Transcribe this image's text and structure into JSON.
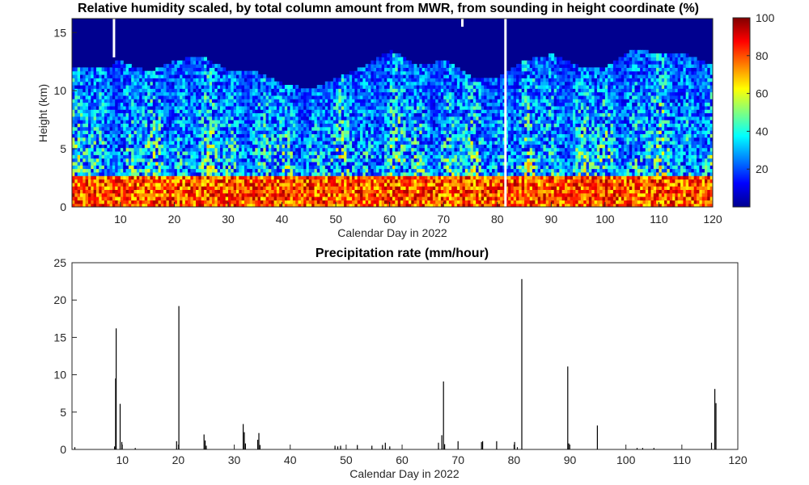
{
  "chart_data": [
    {
      "type": "heatmap",
      "title": "Relative humidity scaled, by total column amount from MWR, from sounding in height coordinate  (%)",
      "xlabel": "Calendar Day in 2022",
      "ylabel": "Height (km)",
      "xlim": [
        1,
        120
      ],
      "ylim": [
        0,
        16.2
      ],
      "xticks": [
        10,
        20,
        30,
        40,
        50,
        60,
        70,
        80,
        90,
        100,
        110,
        120
      ],
      "yticks": [
        0,
        5,
        10,
        15
      ],
      "colorbar": {
        "colormap": "jet",
        "range": [
          0,
          100
        ],
        "ticks": [
          20,
          40,
          60,
          80,
          100
        ]
      },
      "missing_data_days": [
        8.8,
        73.5,
        81.5
      ],
      "moist_layer_top_km_approx": [
        [
          1,
          12
        ],
        [
          8,
          12
        ],
        [
          9,
          12.5
        ],
        [
          15,
          11.5
        ],
        [
          20,
          12.5
        ],
        [
          25,
          12.8
        ],
        [
          30,
          11.5
        ],
        [
          35,
          11.5
        ],
        [
          40,
          10.5
        ],
        [
          45,
          10
        ],
        [
          50,
          11
        ],
        [
          55,
          12
        ],
        [
          60,
          13.3
        ],
        [
          65,
          12
        ],
        [
          70,
          12.5
        ],
        [
          75,
          11
        ],
        [
          80,
          11
        ],
        [
          85,
          12.5
        ],
        [
          90,
          13
        ],
        [
          95,
          12
        ],
        [
          100,
          12
        ],
        [
          105,
          13.5
        ],
        [
          110,
          13
        ],
        [
          115,
          13
        ],
        [
          120,
          12
        ]
      ]
    },
    {
      "type": "bar",
      "title": "Precipitation rate  (mm/hour)",
      "xlabel": "Calendar Day in 2022",
      "ylabel": "",
      "xlim": [
        1,
        120
      ],
      "ylim": [
        0,
        25
      ],
      "xticks": [
        10,
        20,
        30,
        40,
        50,
        60,
        70,
        80,
        90,
        100,
        110,
        120
      ],
      "yticks": [
        0,
        5,
        10,
        15,
        20,
        25
      ],
      "x": [
        1.5,
        8.6,
        8.8,
        8.9,
        9.6,
        9.9,
        12.3,
        19.7,
        20.1,
        24.6,
        24.8,
        25.0,
        31.6,
        31.8,
        32.0,
        34.2,
        34.4,
        34.6,
        48.0,
        48.5,
        49.0,
        52.0,
        54.6,
        56.5,
        57.0,
        57.8,
        66.5,
        67.1,
        67.4,
        67.6,
        70.0,
        74.2,
        74.4,
        76.9,
        80.1,
        80.6,
        81.4,
        89.6,
        89.8,
        94.9,
        102.0,
        103.0,
        105.0,
        115.3,
        115.9,
        116.1
      ],
      "values": [
        0.3,
        0.4,
        9.5,
        16.2,
        6.1,
        1.0,
        0.2,
        1.1,
        19.2,
        2.0,
        1.2,
        0.5,
        3.4,
        2.3,
        0.8,
        1.3,
        2.2,
        0.6,
        0.5,
        0.4,
        0.5,
        0.6,
        0.5,
        0.6,
        0.9,
        0.4,
        0.9,
        1.9,
        9.1,
        0.7,
        1.1,
        1.0,
        1.1,
        1.1,
        1.0,
        0.3,
        22.8,
        11.1,
        0.8,
        3.2,
        0.2,
        0.2,
        0.2,
        0.9,
        8.1,
        6.2
      ]
    }
  ]
}
